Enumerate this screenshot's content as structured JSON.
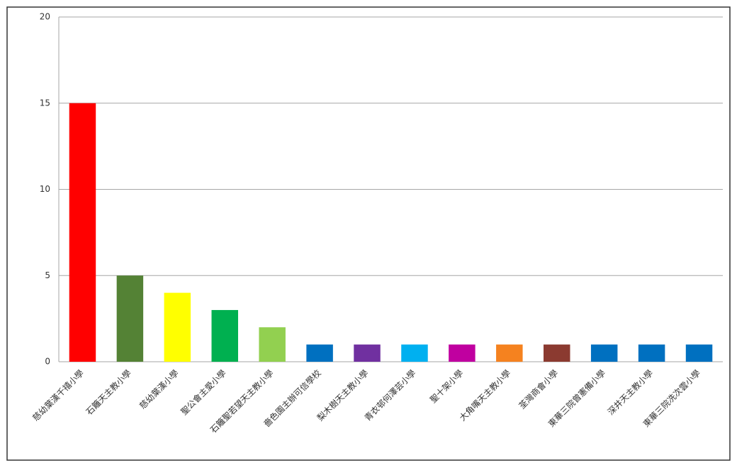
{
  "chart_data": {
    "type": "bar",
    "categories": [
      "慈幼葉漢千禧小學",
      "石籬天主教小學",
      "慈幼葉漢小學",
      "聖公會主愛小學",
      "石籬聖若望天主教小學",
      "嗇色園主辦可信學校",
      "梨木樹天主教小學",
      "青衣邨何澤芸小學",
      "聖十架小學",
      "大角嘴天主教小學",
      "荃灣商會小學",
      "東華三院曾憲備小學",
      "深井天主教小學",
      "東華三院冼次雲小學"
    ],
    "values": [
      15,
      5,
      4,
      3,
      2,
      1,
      1,
      1,
      1,
      1,
      1,
      1,
      1,
      1
    ],
    "colors": [
      "#ff0000",
      "#548235",
      "#ffff00",
      "#00b050",
      "#92d050",
      "#0070c0",
      "#7030a0",
      "#00b0f0",
      "#c000a0",
      "#f5821f",
      "#8b3a30",
      "#0070c0",
      "#0070c0",
      "#0070c0"
    ],
    "ylim": [
      0,
      20
    ],
    "yticks": [
      0,
      5,
      10,
      15,
      20
    ],
    "grid": true
  }
}
